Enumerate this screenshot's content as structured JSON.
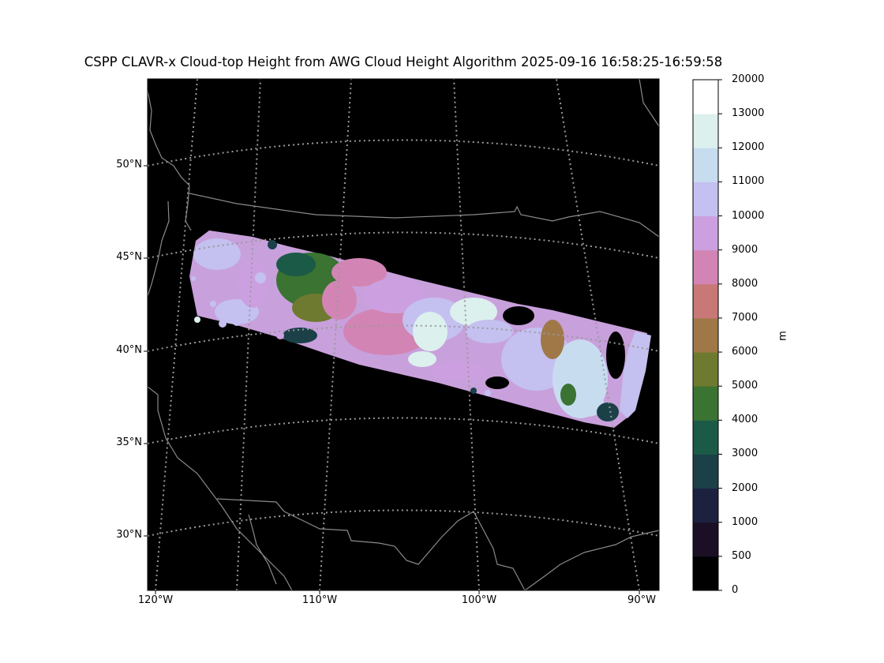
{
  "title": "CSPP CLAVR-x Cloud-top Height from AWG Cloud Height Algorithm 2025-09-16 16:58:25-16:59:58",
  "map": {
    "lat_labels": [
      "50°N",
      "45°N",
      "40°N",
      "35°N",
      "30°N"
    ],
    "lon_labels": [
      "120°W",
      "110°W",
      "100°W",
      "90°W"
    ],
    "background": "#000000",
    "coastline_color": "#8a8a8a",
    "gridline_color": "#9a9a9a"
  },
  "colorbar": {
    "unit": "m",
    "levels": [
      0,
      500,
      1000,
      2000,
      3000,
      4000,
      5000,
      6000,
      7000,
      8000,
      9000,
      10000,
      11000,
      12000,
      13000,
      20000
    ],
    "tick_labels": [
      "0",
      "500",
      "1000",
      "2000",
      "3000",
      "4000",
      "5000",
      "6000",
      "7000",
      "8000",
      "9000",
      "10000",
      "11000",
      "12000",
      "13000",
      "20000"
    ],
    "colors": [
      "#000000",
      "#1a0f24",
      "#1d2140",
      "#1b4048",
      "#1c5a48",
      "#3a7332",
      "#6e7a30",
      "#a07848",
      "#c87876",
      "#d285b4",
      "#cca0e0",
      "#c4c0f0",
      "#c8dcf0",
      "#dcf0ee",
      "#ffffff"
    ]
  }
}
